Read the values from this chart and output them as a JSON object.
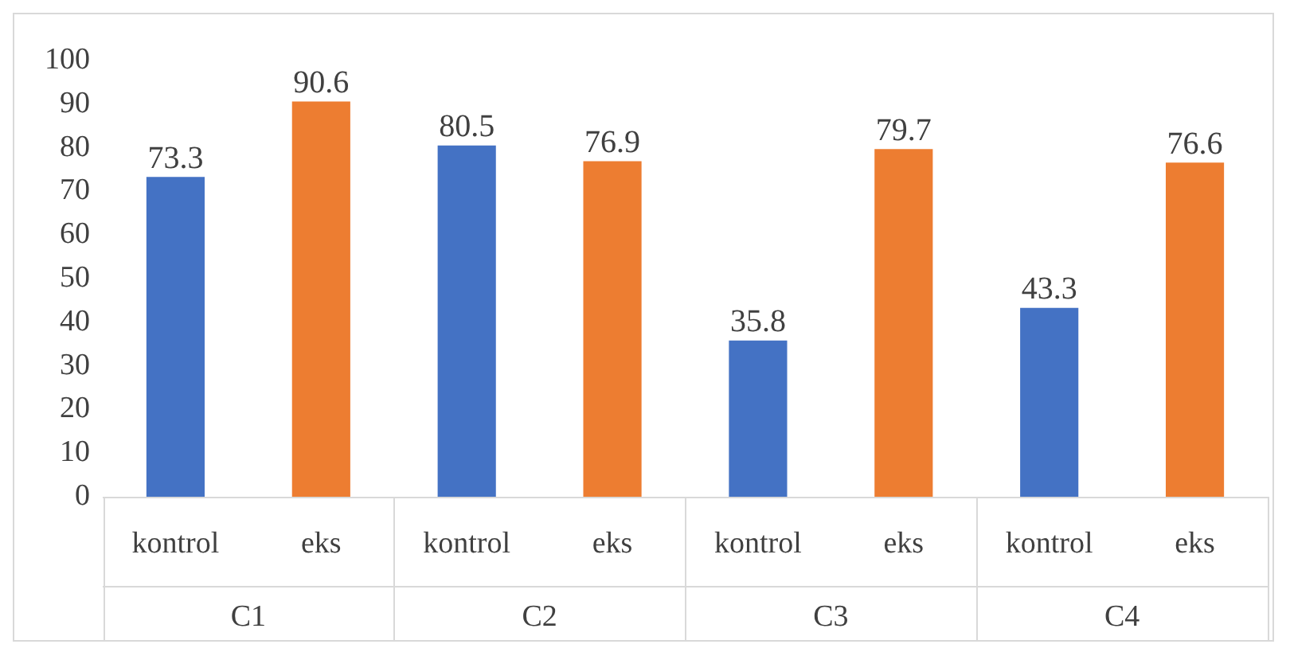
{
  "chart_data": {
    "type": "bar",
    "categories": [
      "C1",
      "C2",
      "C3",
      "C4"
    ],
    "series": [
      {
        "name": "kontrol",
        "color": "#4472c4",
        "values": [
          73.3,
          80.5,
          35.8,
          43.3
        ]
      },
      {
        "name": "eks",
        "color": "#ed7d31",
        "values": [
          90.6,
          76.9,
          79.7,
          76.6
        ]
      }
    ],
    "ylim": [
      0,
      100
    ],
    "yticks": [
      0,
      10,
      20,
      30,
      40,
      50,
      60,
      70,
      80,
      90,
      100
    ],
    "grid": false,
    "legend": false,
    "data_labels": true
  }
}
